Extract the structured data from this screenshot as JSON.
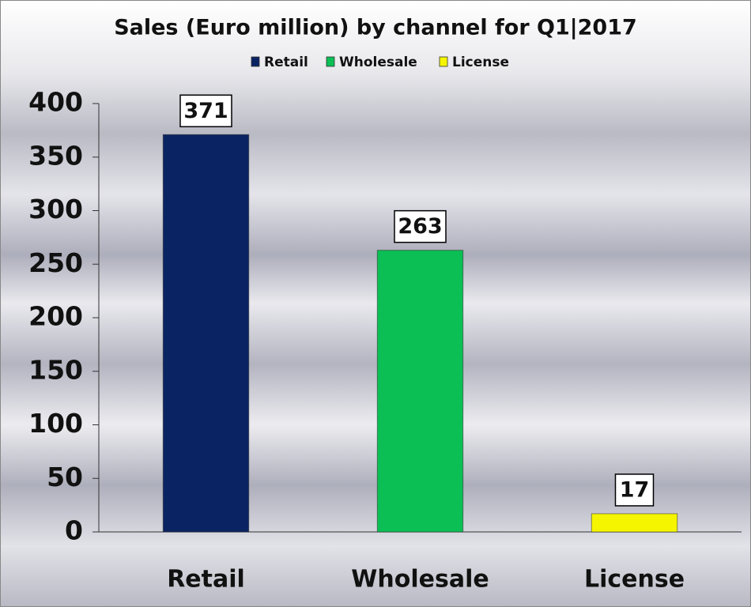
{
  "chart_data": {
    "type": "bar",
    "title": "Sales (Euro million) by channel  for Q1|2017",
    "categories": [
      "Retail",
      "Wholesale",
      "License"
    ],
    "values": [
      371,
      263,
      17
    ],
    "colors": [
      "#0a2463",
      "#0bbf54",
      "#f5f500"
    ],
    "ylim": [
      0,
      400
    ],
    "yticks": [
      0,
      50,
      100,
      150,
      200,
      250,
      300,
      350,
      400
    ],
    "legend": "top",
    "grid": false
  }
}
